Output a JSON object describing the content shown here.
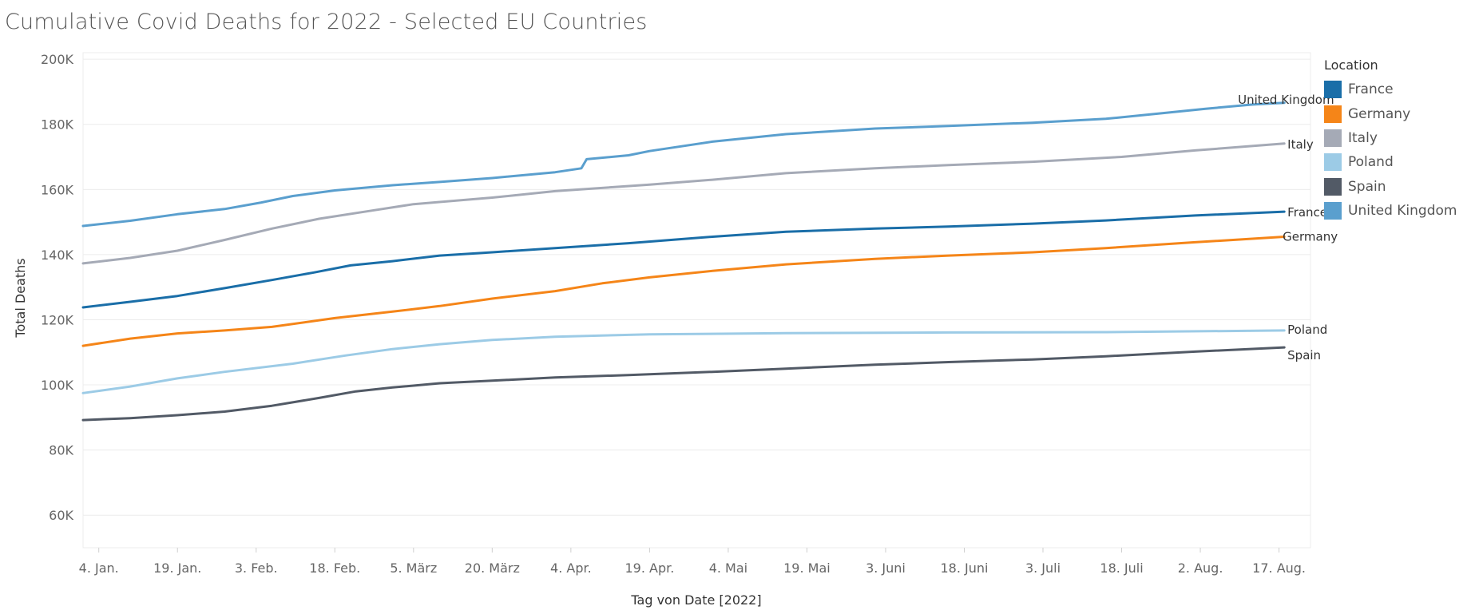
{
  "title": "Cumulative Covid Deaths for 2022 - Selected EU Countries",
  "legend": {
    "title": "Location",
    "items": [
      {
        "label": "France",
        "color": "#1a6ea8"
      },
      {
        "label": "Germany",
        "color": "#f58518"
      },
      {
        "label": "Italy",
        "color": "#a5aab6"
      },
      {
        "label": "Poland",
        "color": "#9ccbe6"
      },
      {
        "label": "Spain",
        "color": "#525a66"
      },
      {
        "label": "United Kingdom",
        "color": "#5a9fce"
      }
    ]
  },
  "chart_data": {
    "type": "line",
    "title": "Cumulative Covid Deaths for 2022 - Selected EU Countries",
    "xlabel": "Tag von Date [2022]",
    "ylabel": "Total Deaths",
    "x_range": [
      "2022-01-01",
      "2022-08-23"
    ],
    "ylim": [
      50000,
      202000
    ],
    "y_ticks": [
      60000,
      80000,
      100000,
      120000,
      140000,
      160000,
      180000,
      200000
    ],
    "y_tick_labels": [
      "60K",
      "80K",
      "100K",
      "120K",
      "140K",
      "160K",
      "180K",
      "200K"
    ],
    "x_ticks": [
      "2022-01-04",
      "2022-01-19",
      "2022-02-03",
      "2022-02-18",
      "2022-03-05",
      "2022-03-20",
      "2022-04-04",
      "2022-04-19",
      "2022-05-04",
      "2022-05-19",
      "2022-06-03",
      "2022-06-18",
      "2022-07-03",
      "2022-07-18",
      "2022-08-02",
      "2022-08-17"
    ],
    "x_tick_labels": [
      "4. Jan.",
      "19. Jan.",
      "3. Feb.",
      "18. Feb.",
      "5. März",
      "20. März",
      "4. Apr.",
      "19. Apr.",
      "4. Mai",
      "19. Mai",
      "3. Juni",
      "18. Juni",
      "3. Juli",
      "18. Juli",
      "2. Aug.",
      "17. Aug."
    ],
    "grid": true,
    "legend_position": "right",
    "series": [
      {
        "name": "France",
        "color": "#1a6ea8",
        "points": [
          [
            "2022-01-01",
            123800
          ],
          [
            "2022-01-10",
            125500
          ],
          [
            "2022-01-19",
            127300
          ],
          [
            "2022-01-28",
            129700
          ],
          [
            "2022-02-06",
            132200
          ],
          [
            "2022-02-14",
            134500
          ],
          [
            "2022-02-21",
            136700
          ],
          [
            "2022-03-01",
            138000
          ],
          [
            "2022-03-10",
            139700
          ],
          [
            "2022-03-20",
            140700
          ],
          [
            "2022-04-01",
            142000
          ],
          [
            "2022-04-15",
            143500
          ],
          [
            "2022-05-01",
            145500
          ],
          [
            "2022-05-15",
            147000
          ],
          [
            "2022-06-01",
            148000
          ],
          [
            "2022-06-15",
            148600
          ],
          [
            "2022-07-01",
            149500
          ],
          [
            "2022-07-15",
            150500
          ],
          [
            "2022-08-01",
            152000
          ],
          [
            "2022-08-18",
            153200
          ]
        ]
      },
      {
        "name": "Germany",
        "color": "#f58518",
        "points": [
          [
            "2022-01-01",
            112000
          ],
          [
            "2022-01-10",
            114200
          ],
          [
            "2022-01-19",
            115800
          ],
          [
            "2022-01-28",
            116700
          ],
          [
            "2022-02-06",
            117800
          ],
          [
            "2022-02-18",
            120500
          ],
          [
            "2022-03-01",
            122500
          ],
          [
            "2022-03-10",
            124200
          ],
          [
            "2022-03-20",
            126500
          ],
          [
            "2022-04-01",
            128800
          ],
          [
            "2022-04-10",
            131200
          ],
          [
            "2022-04-19",
            133000
          ],
          [
            "2022-05-01",
            135000
          ],
          [
            "2022-05-15",
            137000
          ],
          [
            "2022-06-01",
            138700
          ],
          [
            "2022-06-15",
            139700
          ],
          [
            "2022-07-01",
            140700
          ],
          [
            "2022-07-15",
            142000
          ],
          [
            "2022-08-01",
            143800
          ],
          [
            "2022-08-18",
            145500
          ]
        ]
      },
      {
        "name": "Italy",
        "color": "#a5aab6",
        "points": [
          [
            "2022-01-01",
            137300
          ],
          [
            "2022-01-10",
            139000
          ],
          [
            "2022-01-19",
            141200
          ],
          [
            "2022-01-28",
            144500
          ],
          [
            "2022-02-06",
            148000
          ],
          [
            "2022-02-15",
            151000
          ],
          [
            "2022-02-25",
            153500
          ],
          [
            "2022-03-05",
            155500
          ],
          [
            "2022-03-20",
            157500
          ],
          [
            "2022-04-01",
            159500
          ],
          [
            "2022-04-19",
            161500
          ],
          [
            "2022-05-01",
            163000
          ],
          [
            "2022-05-15",
            165000
          ],
          [
            "2022-06-01",
            166500
          ],
          [
            "2022-06-15",
            167500
          ],
          [
            "2022-07-01",
            168500
          ],
          [
            "2022-07-18",
            170000
          ],
          [
            "2022-08-01",
            172000
          ],
          [
            "2022-08-18",
            174100
          ]
        ]
      },
      {
        "name": "Poland",
        "color": "#9ccbe6",
        "points": [
          [
            "2022-01-01",
            97500
          ],
          [
            "2022-01-10",
            99500
          ],
          [
            "2022-01-19",
            102000
          ],
          [
            "2022-01-28",
            104000
          ],
          [
            "2022-02-10",
            106500
          ],
          [
            "2022-02-20",
            109000
          ],
          [
            "2022-03-01",
            111000
          ],
          [
            "2022-03-10",
            112500
          ],
          [
            "2022-03-20",
            113800
          ],
          [
            "2022-04-01",
            114800
          ],
          [
            "2022-04-19",
            115500
          ],
          [
            "2022-05-15",
            115900
          ],
          [
            "2022-06-15",
            116100
          ],
          [
            "2022-07-15",
            116200
          ],
          [
            "2022-08-18",
            116700
          ]
        ]
      },
      {
        "name": "Spain",
        "color": "#525a66",
        "points": [
          [
            "2022-01-01",
            89200
          ],
          [
            "2022-01-10",
            89800
          ],
          [
            "2022-01-19",
            90700
          ],
          [
            "2022-01-28",
            91800
          ],
          [
            "2022-02-06",
            93600
          ],
          [
            "2022-02-15",
            96000
          ],
          [
            "2022-02-22",
            98000
          ],
          [
            "2022-03-01",
            99200
          ],
          [
            "2022-03-10",
            100500
          ],
          [
            "2022-03-20",
            101300
          ],
          [
            "2022-04-01",
            102300
          ],
          [
            "2022-04-15",
            103000
          ],
          [
            "2022-05-01",
            104000
          ],
          [
            "2022-05-15",
            105000
          ],
          [
            "2022-06-01",
            106200
          ],
          [
            "2022-06-15",
            107000
          ],
          [
            "2022-07-01",
            107800
          ],
          [
            "2022-07-15",
            108800
          ],
          [
            "2022-08-01",
            110200
          ],
          [
            "2022-08-18",
            111500
          ]
        ]
      },
      {
        "name": "United Kingdom",
        "color": "#5a9fce",
        "points": [
          [
            "2022-01-01",
            148800
          ],
          [
            "2022-01-10",
            150400
          ],
          [
            "2022-01-19",
            152400
          ],
          [
            "2022-01-28",
            154000
          ],
          [
            "2022-02-04",
            156000
          ],
          [
            "2022-02-10",
            158000
          ],
          [
            "2022-02-18",
            159700
          ],
          [
            "2022-03-01",
            161300
          ],
          [
            "2022-03-10",
            162300
          ],
          [
            "2022-03-20",
            163500
          ],
          [
            "2022-04-01",
            165300
          ],
          [
            "2022-04-06",
            166500
          ],
          [
            "2022-04-07",
            169300
          ],
          [
            "2022-04-15",
            170500
          ],
          [
            "2022-04-19",
            171800
          ],
          [
            "2022-05-01",
            174700
          ],
          [
            "2022-05-15",
            177000
          ],
          [
            "2022-06-01",
            178700
          ],
          [
            "2022-06-15",
            179500
          ],
          [
            "2022-07-01",
            180500
          ],
          [
            "2022-07-15",
            181700
          ],
          [
            "2022-07-25",
            183300
          ],
          [
            "2022-08-03",
            184800
          ],
          [
            "2022-08-12",
            186100
          ],
          [
            "2022-08-18",
            186600
          ]
        ]
      }
    ]
  }
}
